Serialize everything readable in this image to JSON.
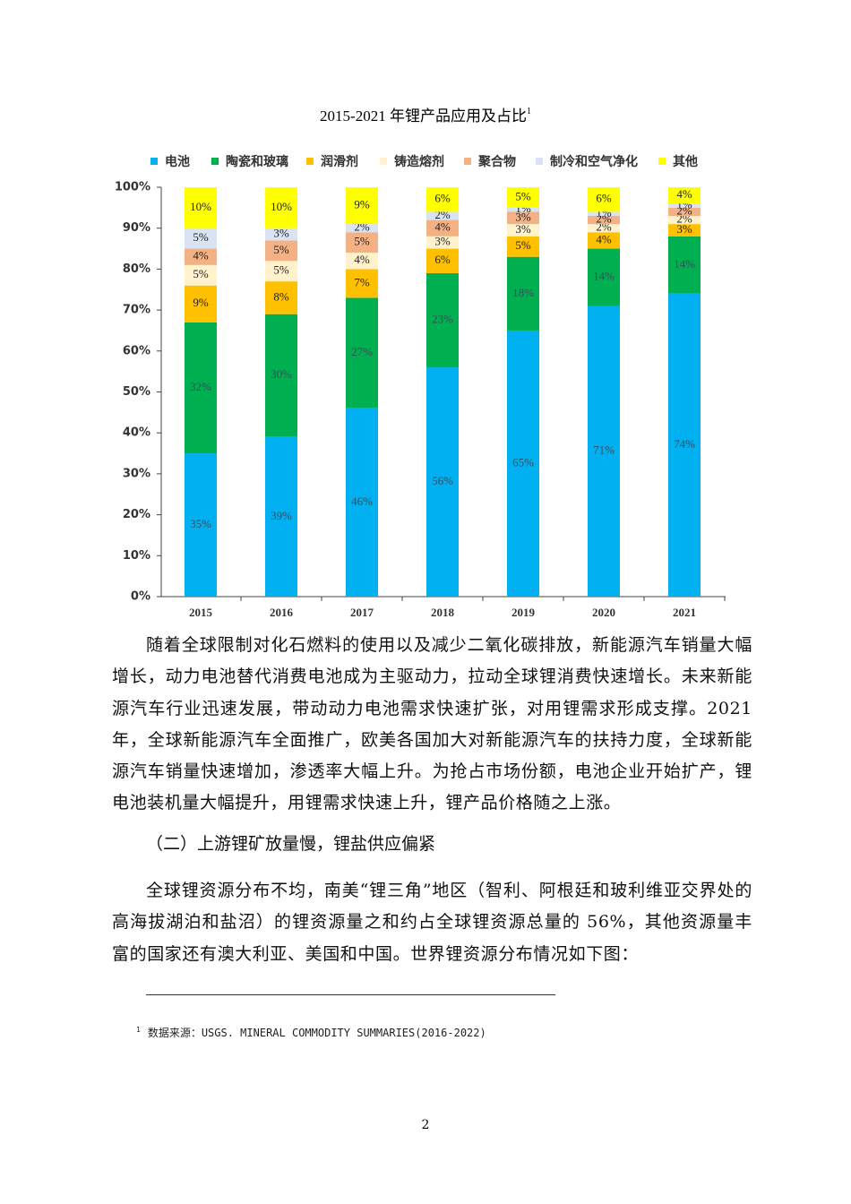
{
  "chart_data": {
    "type": "stacked_bar",
    "title": "2015-2021 年锂产品应用及占比",
    "title_note": "1",
    "categories": [
      "2015",
      "2016",
      "2017",
      "2018",
      "2019",
      "2020",
      "2021"
    ],
    "series": [
      {
        "name": "电池",
        "color": "#00b0f0",
        "values": [
          35,
          39,
          46,
          56,
          65,
          71,
          74
        ],
        "value_labels": [
          "35%",
          "39%",
          "46%",
          "56%",
          "65%",
          "71%",
          "74%"
        ]
      },
      {
        "name": "陶瓷和玻璃",
        "color": "#00b050",
        "values": [
          32,
          30,
          27,
          23,
          18,
          14,
          14
        ],
        "value_labels": [
          "32%",
          "30%",
          "27%",
          "23%",
          "18%",
          "14%",
          "14%"
        ]
      },
      {
        "name": "润滑剂",
        "color": "#ffc000",
        "values": [
          9,
          8,
          7,
          6,
          5,
          4,
          3
        ],
        "value_labels": [
          "9%",
          "8%",
          "7%",
          "6%",
          "5%",
          "4%",
          "3%"
        ]
      },
      {
        "name": "铸造熔剂",
        "color": "#fff2cc",
        "values": [
          5,
          5,
          4,
          3,
          3,
          2,
          2
        ],
        "value_labels": [
          "5%",
          "5%",
          "4%",
          "3%",
          "3%",
          "2%",
          "2%"
        ]
      },
      {
        "name": "聚合物",
        "color": "#f4b183",
        "values": [
          4,
          5,
          5,
          4,
          3,
          2,
          2
        ],
        "value_labels": [
          "4%",
          "5%",
          "5%",
          "4%",
          "3%",
          "2%",
          "2%"
        ]
      },
      {
        "name": "制冷和空气净化",
        "color": "#dae3f3",
        "values": [
          5,
          3,
          2,
          2,
          1,
          1,
          1
        ],
        "value_labels": [
          "5%",
          "3%",
          "2%",
          "2%",
          "1%",
          "1%",
          "1%"
        ]
      },
      {
        "name": "其他",
        "color": "#ffff00",
        "values": [
          10,
          10,
          9,
          6,
          5,
          6,
          4
        ],
        "value_labels": [
          "10%",
          "10%",
          "9%",
          "6%",
          "5%",
          "6%",
          "4%"
        ]
      }
    ],
    "ylim": [
      0,
      100
    ],
    "yticks": [
      {
        "value": 0,
        "label": "0%"
      },
      {
        "value": 10,
        "label": "10%"
      },
      {
        "value": 20,
        "label": "20%"
      },
      {
        "value": 30,
        "label": "30%"
      },
      {
        "value": 40,
        "label": "40%"
      },
      {
        "value": 50,
        "label": "50%"
      },
      {
        "value": 60,
        "label": "60%"
      },
      {
        "value": 70,
        "label": "70%"
      },
      {
        "value": 80,
        "label": "80%"
      },
      {
        "value": 90,
        "label": "90%"
      },
      {
        "value": 100,
        "label": "100%"
      }
    ],
    "legend": "top"
  },
  "body": {
    "paragraph_1": "随着全球限制对化石燃料的使用以及减少二氧化碳排放，新能源汽车销量大幅增长，动力电池替代消费电池成为主驱动力，拉动全球锂消费快速增长。未来新能源汽车行业迅速发展，带动动力电池需求快速扩张，对用锂需求形成支撑。2021 年，全球新能源汽车全面推广，欧美各国加大对新能源汽车的扶持力度，全球新能源汽车销量快速增加，渗透率大幅上升。为抢占市场份额，电池企业开始扩产，锂电池装机量大幅提升，用锂需求快速上升，锂产品价格随之上涨。",
    "heading": "（二）上游锂矿放量慢，锂盐供应偏紧",
    "paragraph_2": "全球锂资源分布不均，南美“锂三角”地区（智利、阿根廷和玻利维亚交界处的高海拔湖泊和盐沼）的锂资源量之和约占全球锂资源总量的 56%，其他资源量丰富的国家还有澳大利亚、美国和中国。世界锂资源分布情况如下图："
  },
  "footnote": {
    "mark": "1",
    "text": "数据来源：USGS. MINERAL COMMODITY SUMMARIES(2016-2022)"
  },
  "page_number": "2"
}
